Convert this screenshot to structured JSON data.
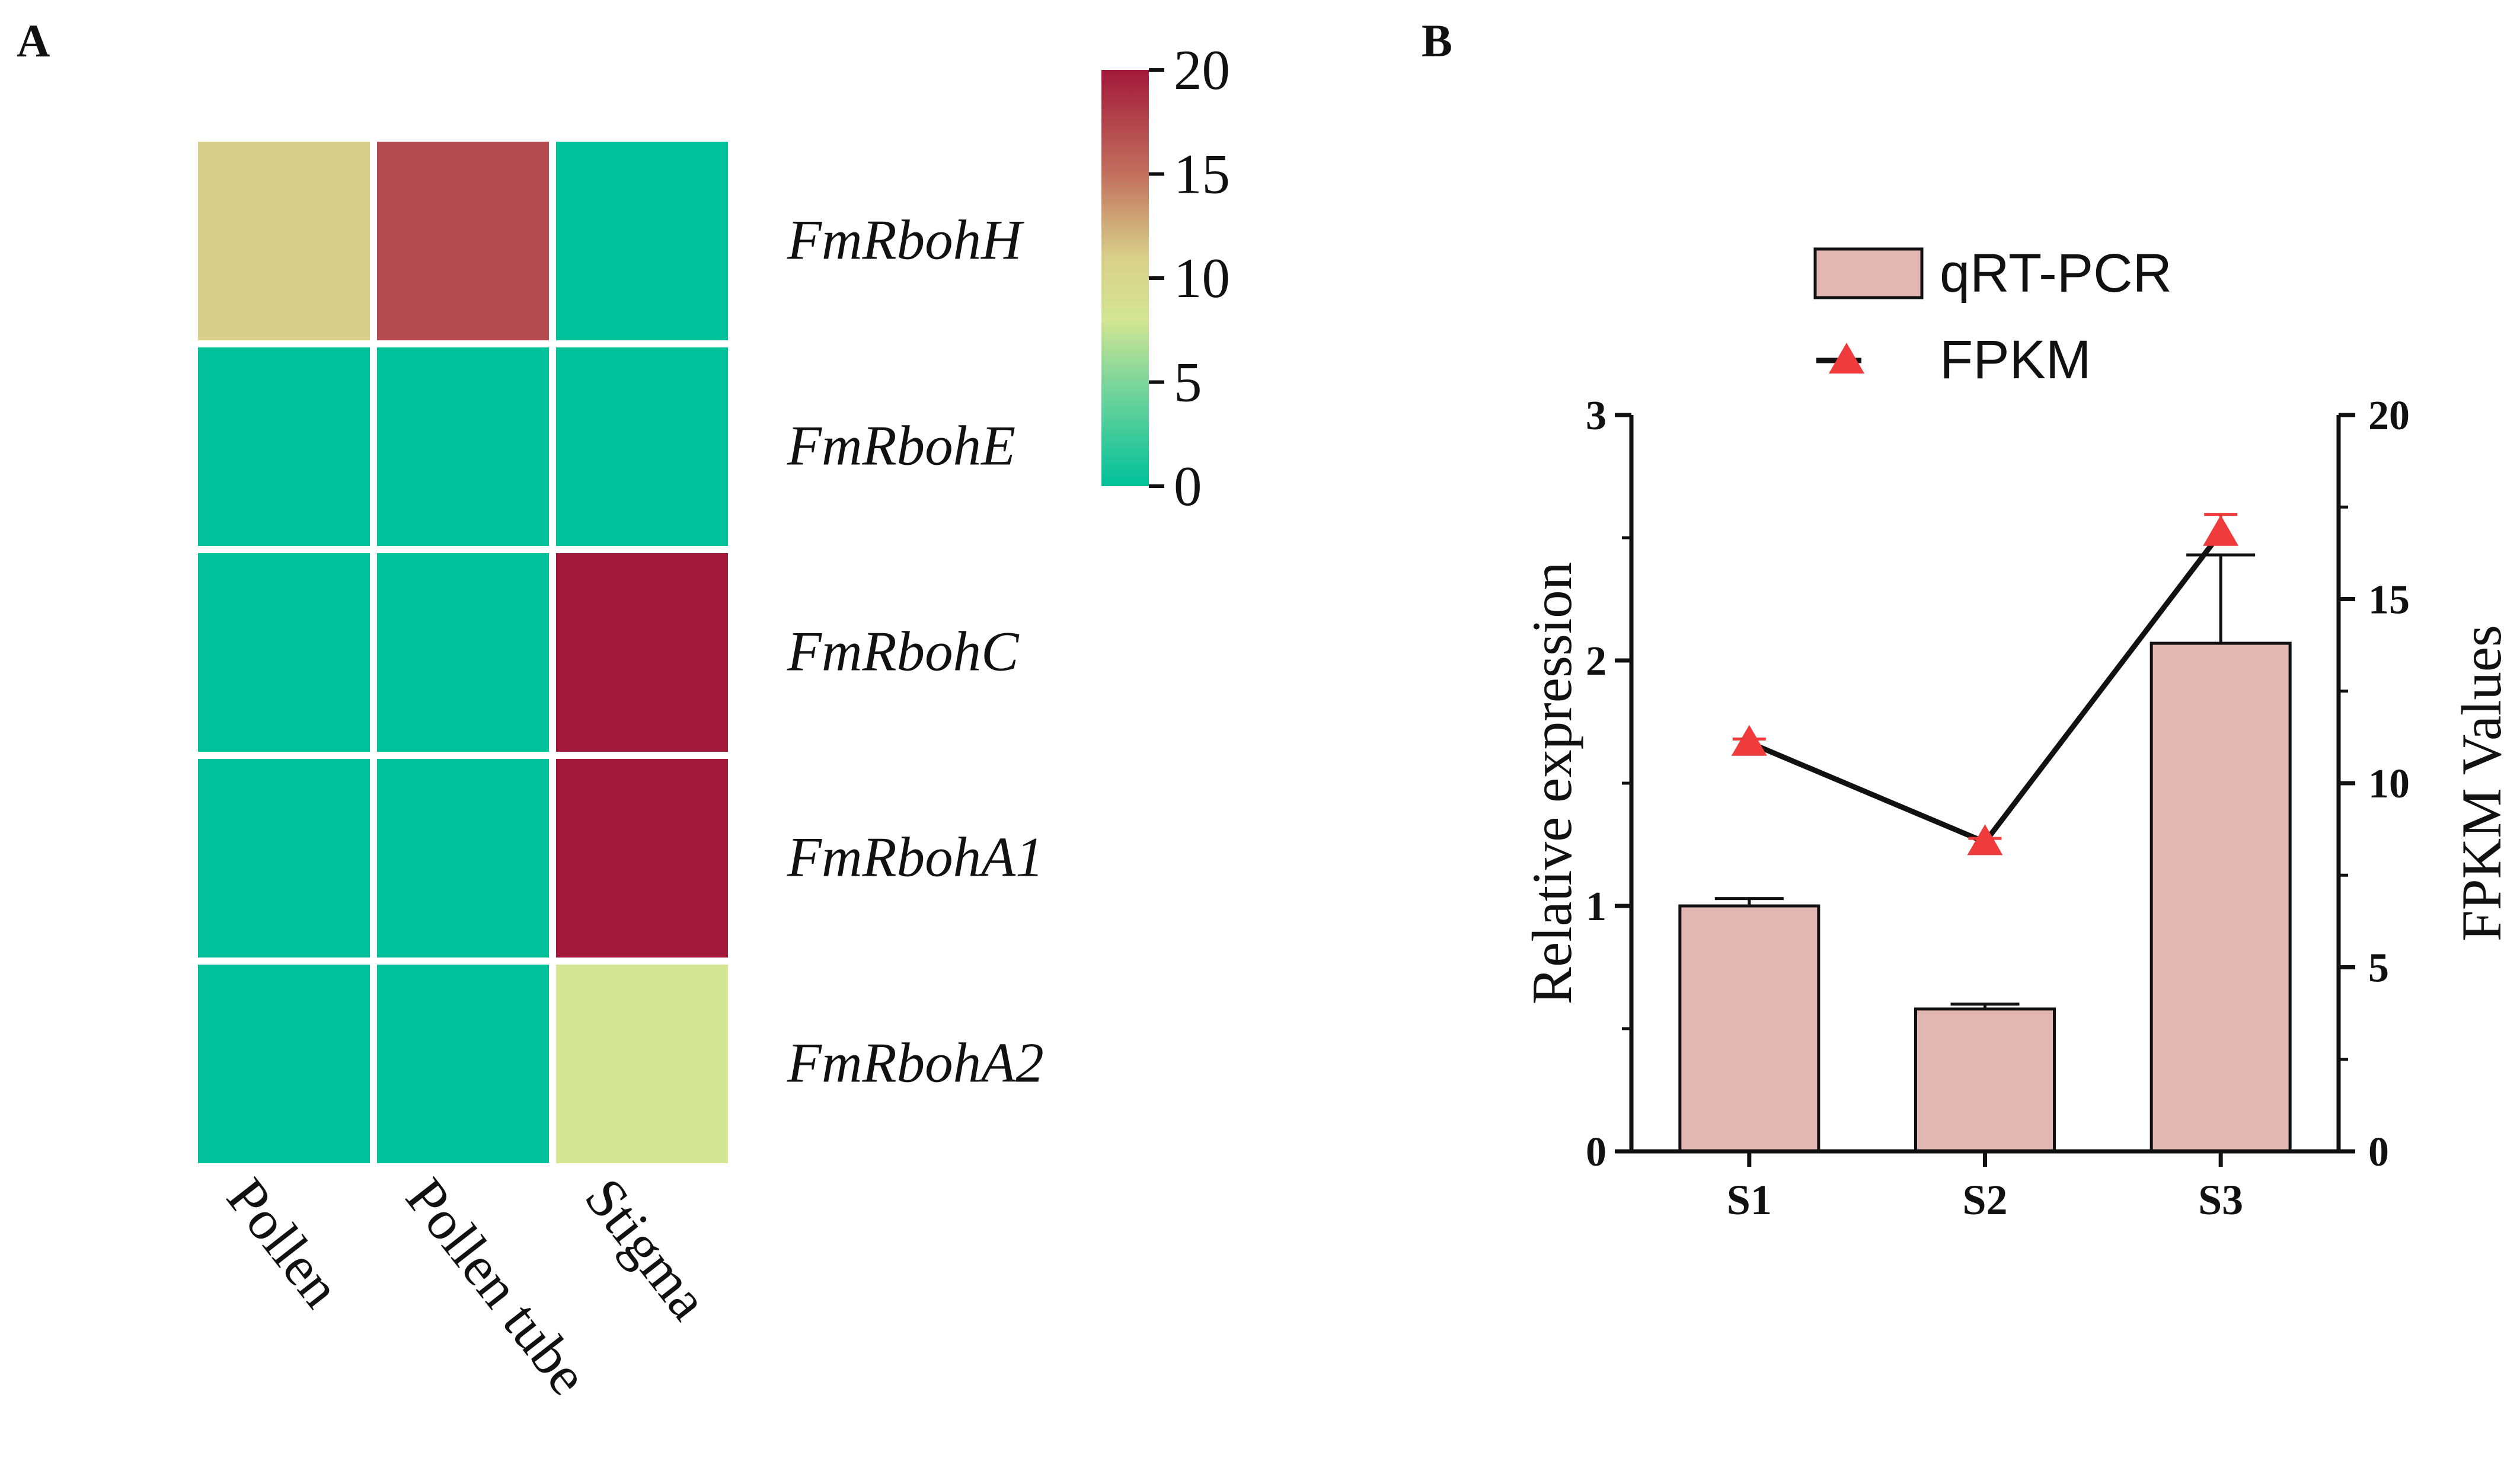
{
  "chart_data": [
    {
      "panel": "A",
      "type": "heatmap",
      "rows": [
        "FmRbohH",
        "FmRbohE",
        "FmRbohC",
        "FmRbohA1",
        "FmRbohA2"
      ],
      "columns": [
        "Pollen",
        "Pollen tube",
        "Stigma"
      ],
      "values": [
        [
          11,
          17,
          0
        ],
        [
          0,
          0,
          0
        ],
        [
          0,
          0,
          20
        ],
        [
          0,
          0,
          20
        ],
        [
          0,
          0,
          8
        ]
      ],
      "colorbar": {
        "min": 0,
        "max": 20,
        "ticks": [
          "20",
          "15",
          "10",
          "5",
          "0"
        ],
        "stops": [
          {
            "value": 0,
            "color": "#00c199"
          },
          {
            "value": 5,
            "color": "#7dd59b"
          },
          {
            "value": 8,
            "color": "#d4e693"
          },
          {
            "value": 11,
            "color": "#d8d08a"
          },
          {
            "value": 15,
            "color": "#c2705e"
          },
          {
            "value": 20,
            "color": "#a2193b"
          }
        ]
      }
    },
    {
      "panel": "B",
      "type": "bar",
      "categories": [
        "S1",
        "S2",
        "S3"
      ],
      "series": [
        {
          "name": "qRT-PCR",
          "axis": "left",
          "kind": "bar",
          "values": [
            1.0,
            0.58,
            2.07
          ],
          "errors": [
            0.03,
            0.02,
            0.36
          ],
          "color": "#e2b6b1"
        },
        {
          "name": "FPKM",
          "axis": "right",
          "kind": "line",
          "values": [
            11.1,
            8.4,
            16.8
          ],
          "errors": [
            0.1,
            0.1,
            0.5
          ],
          "color": "#ef3b3b"
        }
      ],
      "ylabel": "Relative expression",
      "y2label": "FPKM Values",
      "ylim": [
        0,
        3
      ],
      "y2lim": [
        0,
        20
      ],
      "yticks": [
        "0",
        "1",
        "2",
        "3"
      ],
      "y2ticks": [
        "0",
        "5",
        "10",
        "15",
        "20"
      ],
      "legend": "top-center"
    }
  ],
  "panel_labels": {
    "a": "A",
    "b": "B"
  }
}
